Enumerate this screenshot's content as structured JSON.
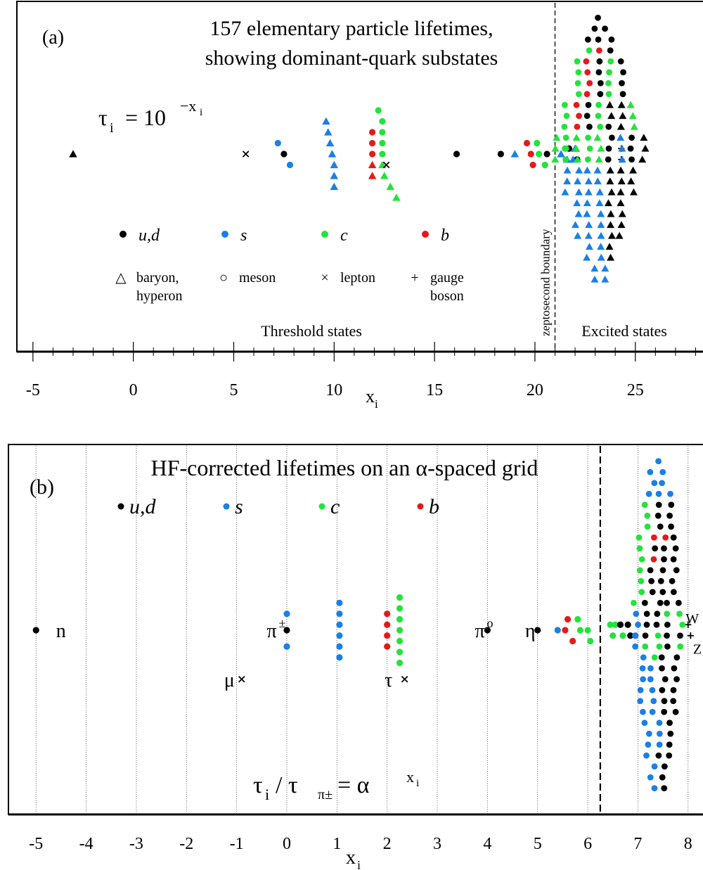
{
  "colors": {
    "ud": "#000000",
    "s": "#1a7fe6",
    "c": "#22e33a",
    "b": "#e61919"
  },
  "chart_data": [
    {
      "type": "scatter",
      "panel_label": "(a)",
      "title_lines": [
        "157 elementary particle lifetimes,",
        "showing dominant-quark substates"
      ],
      "formula": {
        "base": "τ",
        "sub": "i",
        "eq": "= 10",
        "exp": "−x",
        "exp_sub": "i"
      },
      "xlabel": {
        "main": "x",
        "sub": "i"
      },
      "xlim": [
        -5.8,
        29
      ],
      "xticks": [
        -5,
        0,
        5,
        10,
        15,
        20,
        25
      ],
      "xtick_labels": [
        "-5",
        "0",
        "5",
        "10",
        "15",
        "20",
        "25"
      ],
      "boundary": {
        "x": 21,
        "label": "zeptosecond boundary"
      },
      "region_labels": [
        "Threshold states",
        "Excited states"
      ],
      "legend_quarks": [
        {
          "key": "ud",
          "label": "u,d"
        },
        {
          "key": "s",
          "label": "s"
        },
        {
          "key": "c",
          "label": "c"
        },
        {
          "key": "b",
          "label": "b"
        }
      ],
      "legend_types": [
        {
          "symbol": "△",
          "lines": [
            "baryon,",
            "hyperon"
          ]
        },
        {
          "symbol": "○",
          "lines": [
            "meson"
          ]
        },
        {
          "symbol": "×",
          "lines": [
            "lepton"
          ]
        },
        {
          "symbol": "+",
          "lines": [
            "gauge",
            "boson"
          ]
        }
      ],
      "points": [
        {
          "x": -3.0,
          "y": 0,
          "q": "ud",
          "t": "tri"
        },
        {
          "x": 5.6,
          "y": 0,
          "q": "lepton",
          "t": "x"
        },
        {
          "x": 7.2,
          "y": 1,
          "q": "s",
          "t": "dot"
        },
        {
          "x": 7.5,
          "y": 0,
          "q": "ud",
          "t": "dot"
        },
        {
          "x": 7.8,
          "y": -1,
          "q": "s",
          "t": "dot"
        },
        {
          "x": 9.6,
          "y": 3,
          "q": "s",
          "t": "tri"
        },
        {
          "x": 9.7,
          "y": 2,
          "q": "s",
          "t": "tri"
        },
        {
          "x": 9.8,
          "y": 1,
          "q": "s",
          "t": "tri"
        },
        {
          "x": 9.9,
          "y": 0,
          "q": "s",
          "t": "tri"
        },
        {
          "x": 10.0,
          "y": -1,
          "q": "s",
          "t": "tri"
        },
        {
          "x": 10.0,
          "y": -2,
          "q": "s",
          "t": "tri"
        },
        {
          "x": 10.0,
          "y": -3,
          "q": "s",
          "t": "tri"
        },
        {
          "x": 12.2,
          "y": 4,
          "q": "c",
          "t": "dot"
        },
        {
          "x": 12.4,
          "y": 3,
          "q": "c",
          "t": "dot"
        },
        {
          "x": 12.4,
          "y": 2,
          "q": "c",
          "t": "dot"
        },
        {
          "x": 12.4,
          "y": 1,
          "q": "c",
          "t": "dot"
        },
        {
          "x": 12.4,
          "y": 0,
          "q": "c",
          "t": "dot"
        },
        {
          "x": 11.9,
          "y": 2,
          "q": "b",
          "t": "dot"
        },
        {
          "x": 11.9,
          "y": 1,
          "q": "b",
          "t": "dot"
        },
        {
          "x": 11.9,
          "y": 0,
          "q": "b",
          "t": "dot"
        },
        {
          "x": 11.9,
          "y": -1,
          "q": "b",
          "t": "tri"
        },
        {
          "x": 11.9,
          "y": -2,
          "q": "b",
          "t": "tri"
        },
        {
          "x": 12.4,
          "y": -1,
          "q": "c",
          "t": "tri"
        },
        {
          "x": 12.5,
          "y": -2,
          "q": "c",
          "t": "tri"
        },
        {
          "x": 12.8,
          "y": -3,
          "q": "c",
          "t": "tri"
        },
        {
          "x": 13.1,
          "y": -4,
          "q": "c",
          "t": "tri"
        },
        {
          "x": 12.6,
          "y": -1,
          "q": "lepton",
          "t": "x"
        },
        {
          "x": 16.1,
          "y": 0,
          "q": "ud",
          "t": "dot"
        },
        {
          "x": 18.3,
          "y": 0,
          "q": "ud",
          "t": "dot"
        },
        {
          "x": 19.0,
          "y": 0,
          "q": "s",
          "t": "tri"
        },
        {
          "x": 19.6,
          "y": 1,
          "q": "b",
          "t": "dot"
        },
        {
          "x": 19.8,
          "y": 0,
          "q": "b",
          "t": "dot"
        },
        {
          "x": 19.9,
          "y": -1,
          "q": "b",
          "t": "dot"
        },
        {
          "x": 20.1,
          "y": 1,
          "q": "c",
          "t": "dot"
        },
        {
          "x": 20.2,
          "y": 0,
          "q": "c",
          "t": "dot"
        },
        {
          "x": 20.5,
          "y": -1,
          "q": "c",
          "t": "dot"
        },
        {
          "x": 20.6,
          "y": 0,
          "q": "ud",
          "t": "dot"
        },
        {
          "x": 21.3,
          "y": 0,
          "q": "s",
          "t": "tri"
        },
        {
          "x": 21.5,
          "y": 0.5,
          "q": "c",
          "t": "dot"
        },
        {
          "x": 21.7,
          "y": 0.5,
          "q": "ud",
          "t": "dot"
        },
        {
          "x": 22.0,
          "y": 0.5,
          "q": "s",
          "t": "tri"
        },
        {
          "x": 22.1,
          "y": -0.5,
          "q": "ud",
          "t": "dot"
        },
        {
          "x": 21.6,
          "y": -0.5,
          "q": "s",
          "t": "tri"
        },
        {
          "x": 21.9,
          "y": -0.5,
          "q": "s",
          "t": "tri"
        },
        {
          "x": 24.3,
          "y": 0.5,
          "q": "gauge",
          "t": "plus"
        },
        {
          "x": 24.3,
          "y": -0.5,
          "q": "gauge",
          "t": "plus"
        }
      ]
    },
    {
      "type": "scatter",
      "panel_label": "(b)",
      "title": "HF-corrected lifetimes on an α-spaced grid",
      "formula": {
        "lhs": "τ",
        "lhs_sub": "i",
        "mid": " / τ",
        "mid_sub": "π±",
        "eq": " = α",
        "exp": "x",
        "exp_sub": "i"
      },
      "xlabel": {
        "main": "x",
        "sub": "i"
      },
      "xlim": [
        -5.55,
        8.55
      ],
      "xticks": [
        -5,
        -4,
        -3,
        -2,
        -1,
        0,
        1,
        2,
        3,
        4,
        5,
        6,
        7,
        8
      ],
      "xtick_labels": [
        "-5",
        "-4",
        "-3",
        "-2",
        "-1",
        "0",
        "1",
        "2",
        "3",
        "4",
        "5",
        "6",
        "7",
        "8"
      ],
      "boundary": {
        "x": 6.25
      },
      "legend_quarks": [
        {
          "key": "ud",
          "label": "u,d"
        },
        {
          "key": "s",
          "label": "s"
        },
        {
          "key": "c",
          "label": "c"
        },
        {
          "key": "b",
          "label": "b"
        }
      ],
      "particle_labels": [
        {
          "text": "n",
          "x": -4.6,
          "y": 0
        },
        {
          "text": "π",
          "sup": "±",
          "x": -0.4,
          "y": 0
        },
        {
          "text": "μ",
          "x": -1.25,
          "y": -4.5
        },
        {
          "text": "τ",
          "x": 1.95,
          "y": -4.5
        },
        {
          "text": "π",
          "sup": "o",
          "x": 3.75,
          "y": 0
        },
        {
          "text": "η",
          "x": 4.75,
          "y": 0
        },
        {
          "text": "W",
          "x": 7.95,
          "y": 1.3
        },
        {
          "text": "Z",
          "x": 8.1,
          "y": -1.5
        }
      ],
      "points": [
        {
          "x": -5.0,
          "y": 0,
          "q": "ud",
          "t": "dot"
        },
        {
          "x": -0.9,
          "y": -4.5,
          "q": "lepton",
          "t": "x"
        },
        {
          "x": 0.0,
          "y": 1.5,
          "q": "s",
          "t": "dot"
        },
        {
          "x": 0.0,
          "y": 0,
          "q": "ud",
          "t": "dot"
        },
        {
          "x": 0.0,
          "y": -1.5,
          "q": "s",
          "t": "dot"
        },
        {
          "x": 1.05,
          "y": 2.5,
          "q": "s",
          "t": "dot"
        },
        {
          "x": 1.05,
          "y": 1.5,
          "q": "s",
          "t": "dot"
        },
        {
          "x": 1.05,
          "y": 0.5,
          "q": "s",
          "t": "dot"
        },
        {
          "x": 1.05,
          "y": -0.5,
          "q": "s",
          "t": "dot"
        },
        {
          "x": 1.05,
          "y": -1.5,
          "q": "s",
          "t": "dot"
        },
        {
          "x": 1.05,
          "y": -2.5,
          "q": "s",
          "t": "dot"
        },
        {
          "x": 2.0,
          "y": 1.5,
          "q": "b",
          "t": "dot"
        },
        {
          "x": 2.0,
          "y": 0.5,
          "q": "b",
          "t": "dot"
        },
        {
          "x": 2.0,
          "y": -0.5,
          "q": "b",
          "t": "dot"
        },
        {
          "x": 2.0,
          "y": -1.5,
          "q": "b",
          "t": "dot"
        },
        {
          "x": 2.25,
          "y": 3.0,
          "q": "c",
          "t": "dot"
        },
        {
          "x": 2.25,
          "y": 2.0,
          "q": "c",
          "t": "dot"
        },
        {
          "x": 2.25,
          "y": 1.0,
          "q": "c",
          "t": "dot"
        },
        {
          "x": 2.25,
          "y": 0.0,
          "q": "c",
          "t": "dot"
        },
        {
          "x": 2.25,
          "y": -1.0,
          "q": "c",
          "t": "dot"
        },
        {
          "x": 2.25,
          "y": -2.0,
          "q": "c",
          "t": "dot"
        },
        {
          "x": 2.25,
          "y": -3.0,
          "q": "c",
          "t": "dot"
        },
        {
          "x": 2.35,
          "y": -4.5,
          "q": "lepton",
          "t": "x"
        },
        {
          "x": 4.0,
          "y": 0,
          "q": "ud",
          "t": "dot"
        },
        {
          "x": 5.0,
          "y": 0,
          "q": "ud",
          "t": "dot"
        },
        {
          "x": 5.4,
          "y": 0,
          "q": "s",
          "t": "dot"
        },
        {
          "x": 5.6,
          "y": 1,
          "q": "b",
          "t": "dot"
        },
        {
          "x": 5.55,
          "y": 0,
          "q": "b",
          "t": "dot"
        },
        {
          "x": 5.7,
          "y": -1,
          "q": "b",
          "t": "dot"
        },
        {
          "x": 5.8,
          "y": 1,
          "q": "c",
          "t": "dot"
        },
        {
          "x": 5.85,
          "y": 0,
          "q": "c",
          "t": "dot"
        },
        {
          "x": 6.0,
          "y": 0,
          "q": "c",
          "t": "dot"
        },
        {
          "x": 6.05,
          "y": -1,
          "q": "c",
          "t": "dot"
        },
        {
          "x": 6.45,
          "y": 0.5,
          "q": "c",
          "t": "dot"
        },
        {
          "x": 6.55,
          "y": 0.5,
          "q": "c",
          "t": "dot"
        },
        {
          "x": 6.5,
          "y": -0.5,
          "q": "c",
          "t": "dot"
        },
        {
          "x": 6.7,
          "y": -0.5,
          "q": "c",
          "t": "dot"
        },
        {
          "x": 6.65,
          "y": 0.5,
          "q": "ud",
          "t": "dot"
        },
        {
          "x": 6.8,
          "y": 0.5,
          "q": "ud",
          "t": "dot"
        },
        {
          "x": 6.85,
          "y": -0.5,
          "q": "ud",
          "t": "dot"
        },
        {
          "x": 6.95,
          "y": -0.5,
          "q": "s",
          "t": "dot"
        },
        {
          "x": 8.0,
          "y": 0.5,
          "q": "gauge",
          "t": "plus"
        },
        {
          "x": 8.05,
          "y": -0.5,
          "q": "gauge",
          "t": "plus"
        }
      ]
    }
  ]
}
